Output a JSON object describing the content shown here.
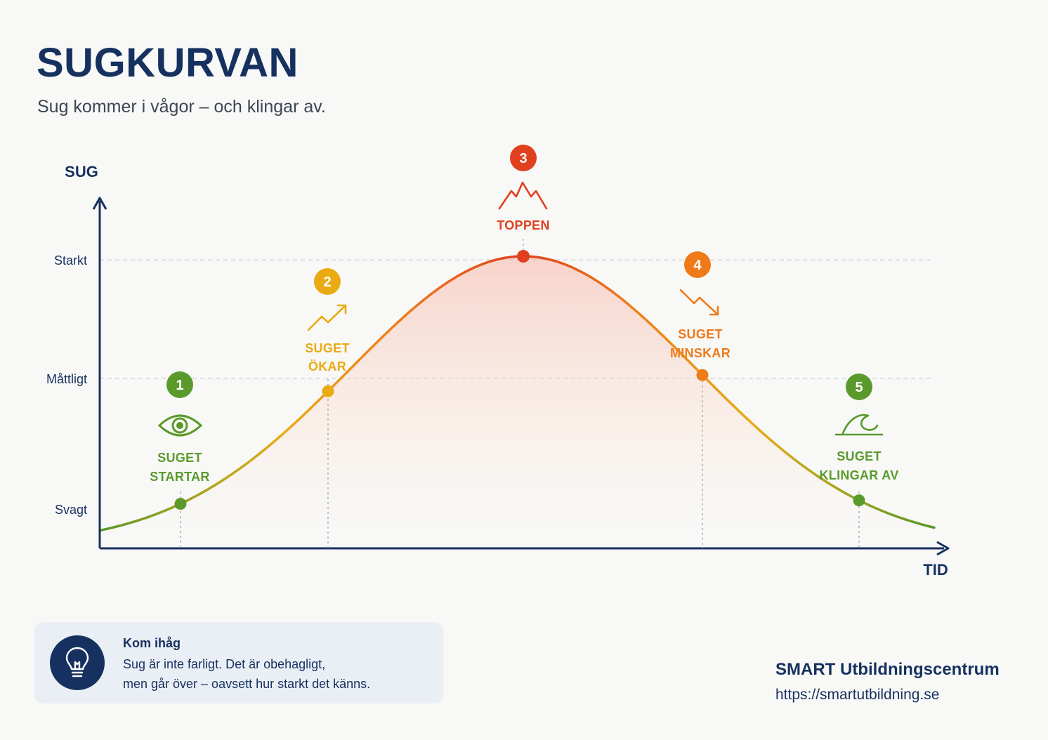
{
  "header": {
    "title": "SUGKURVAN",
    "subtitle": "Sug kommer i vågor – och klingar av."
  },
  "axes": {
    "y_label": "SUG",
    "x_label": "TID",
    "levels": [
      "Starkt",
      "Måttligt",
      "Svagt"
    ]
  },
  "stages": [
    {
      "number": "1",
      "line1": "SUGET",
      "line2": "STARTAR",
      "color": "#5a9a2a",
      "icon": "eye-icon"
    },
    {
      "number": "2",
      "line1": "SUGET",
      "line2": "ÖKAR",
      "color": "#eaaa12",
      "icon": "trend-up-icon"
    },
    {
      "number": "3",
      "line1": "TOPPEN",
      "line2": "",
      "color": "#e0401e",
      "icon": "mountain-icon"
    },
    {
      "number": "4",
      "line1": "SUGET",
      "line2": "MINSKAR",
      "color": "#ef7a18",
      "icon": "trend-down-icon"
    },
    {
      "number": "5",
      "line1": "SUGET",
      "line2": "KLINGAR AV",
      "color": "#5a9a2a",
      "icon": "wave-icon"
    }
  ],
  "colors": {
    "navy": "#16315f",
    "green": "#5a9a2a",
    "yellow": "#eaaa12",
    "orange": "#ef7a18",
    "red": "#e0401e"
  },
  "note": {
    "title": "Kom ihåg",
    "line1": "Sug är inte farligt. Det är obehagligt,",
    "line2": "men går över – oavsett hur starkt det känns.",
    "icon": "lightbulb-icon"
  },
  "footer": {
    "organization": "SMART Utbildningscentrum",
    "url": "https://smartutbildning.se"
  }
}
